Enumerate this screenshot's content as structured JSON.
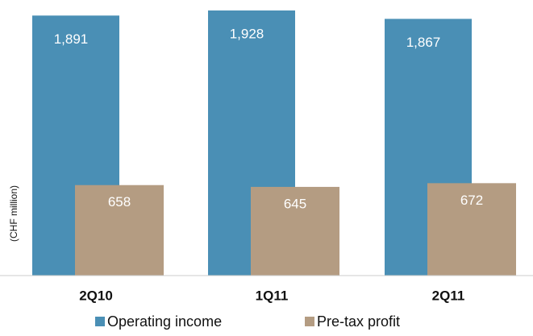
{
  "chart_data": {
    "type": "bar",
    "ylabel": "(CHF million)",
    "categories": [
      "2Q10",
      "1Q11",
      "2Q11"
    ],
    "series": [
      {
        "name": "Operating income",
        "color": "#4a8fb5",
        "values": [
          1891,
          1928,
          1867
        ],
        "value_labels": [
          "1,891",
          "1,928",
          "1,867"
        ]
      },
      {
        "name": "Pre-tax profit",
        "color": "#b49c82",
        "values": [
          658,
          645,
          672
        ]
      }
    ]
  }
}
